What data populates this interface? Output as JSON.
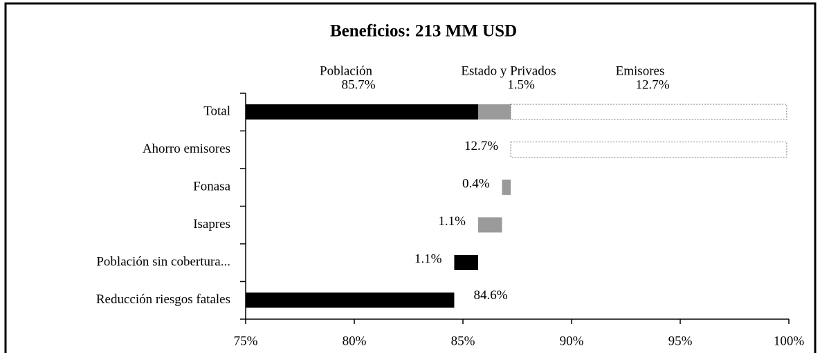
{
  "chart_data": {
    "type": "waterfall",
    "title": "Beneficios: 213 MM USD",
    "total_category": "Total",
    "series": [
      {
        "name": "Población",
        "color": "#000000",
        "value": 85.7,
        "value_label": "85.7%"
      },
      {
        "name": "Estado y Privados",
        "color": "#9a9a9a",
        "value": 1.5,
        "value_label": "1.5%"
      },
      {
        "name": "Emisores",
        "color": "#ffffff",
        "value": 12.7,
        "value_label": "12.7%"
      }
    ],
    "categories": [
      "Ahorro emisores",
      "Fonasa",
      "Isapres",
      "Población sin cobertura...",
      "Reducción riesgos fatales"
    ],
    "values": [
      12.7,
      0.4,
      1.1,
      1.1,
      84.6
    ],
    "value_labels": [
      "12.7%",
      "0.4%",
      "1.1%",
      "1.1%",
      "84.6%"
    ],
    "colors": [
      "#ffffff",
      "#9a9a9a",
      "#9a9a9a",
      "#000000",
      "#000000"
    ],
    "xlim": [
      75,
      100
    ],
    "xticks": [
      {
        "value": 75,
        "label": "75%"
      },
      {
        "value": 80,
        "label": "80%"
      },
      {
        "value": 85,
        "label": "85%"
      },
      {
        "value": 90,
        "label": "90%"
      },
      {
        "value": 95,
        "label": "95%"
      },
      {
        "value": 100,
        "label": "100%"
      }
    ]
  }
}
